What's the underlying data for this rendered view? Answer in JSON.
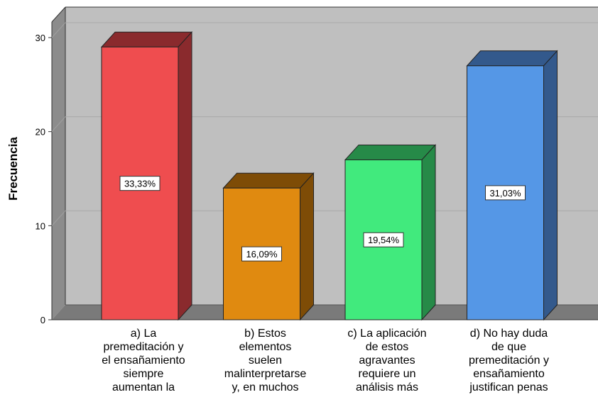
{
  "chart_data": {
    "type": "bar",
    "ylabel": "Frecuencia",
    "ylim": [
      0,
      30
    ],
    "yticks": [
      "0",
      "10",
      "20",
      "30"
    ],
    "grid": true,
    "categories": [
      [
        "a) La",
        "premeditación y",
        "el ensañamiento",
        "siempre",
        "aumentan la"
      ],
      [
        "b) Estos",
        "elementos",
        "suelen",
        "malinterpretarse",
        "y, en muchos"
      ],
      [
        "c) La aplicación",
        "de estos",
        "agravantes",
        "requiere un",
        "análisis más"
      ],
      [
        "d) No hay duda",
        "de que",
        "premeditación y",
        "ensañamiento",
        "justifican penas"
      ]
    ],
    "values": [
      29,
      14,
      17,
      27
    ],
    "data_labels": [
      "33,33%",
      "16,09%",
      "19,54%",
      "31,03%"
    ],
    "colors": [
      {
        "front": "#ef4d4f",
        "side": "#8a2a2d",
        "top": "#8a2a2d"
      },
      {
        "front": "#e08a10",
        "side": "#7e4c06",
        "top": "#7e4c06"
      },
      {
        "front": "#41ea7d",
        "side": "#268a48",
        "top": "#268a48"
      },
      {
        "front": "#5597e6",
        "side": "#33598c",
        "top": "#33598c"
      }
    ]
  }
}
